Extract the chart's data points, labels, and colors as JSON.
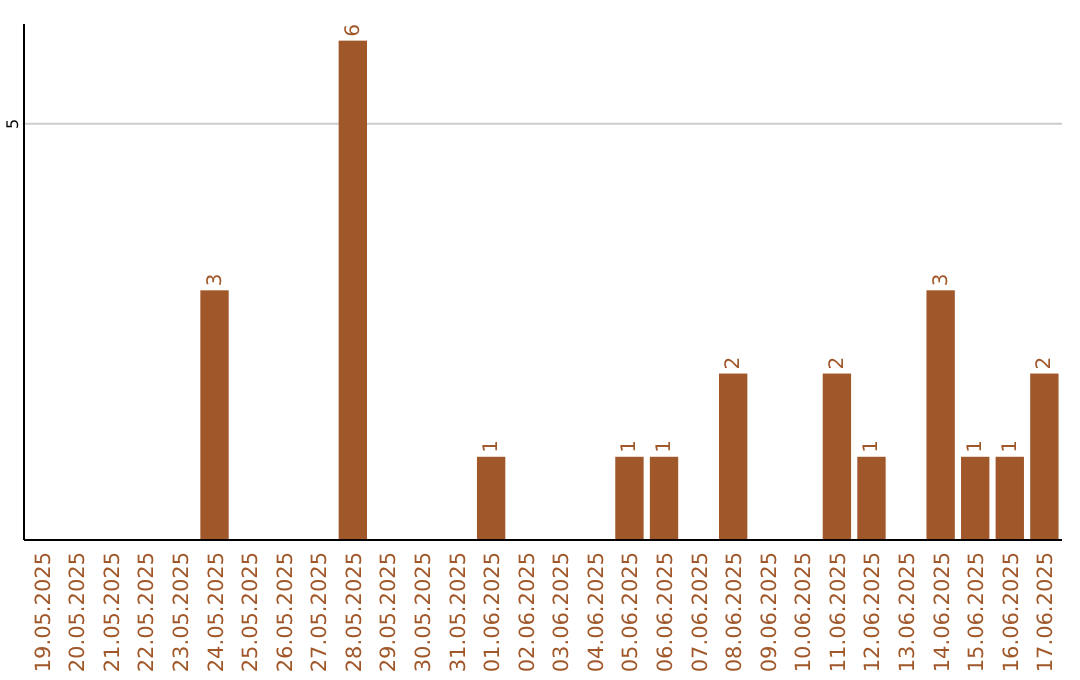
{
  "chart_data": {
    "type": "bar",
    "categories": [
      "19.05.2025",
      "20.05.2025",
      "21.05.2025",
      "22.05.2025",
      "23.05.2025",
      "24.05.2025",
      "25.05.2025",
      "26.05.2025",
      "27.05.2025",
      "28.05.2025",
      "29.05.2025",
      "30.05.2025",
      "31.05.2025",
      "01.06.2025",
      "02.06.2025",
      "03.06.2025",
      "04.06.2025",
      "05.06.2025",
      "06.06.2025",
      "07.06.2025",
      "08.06.2025",
      "09.06.2025",
      "10.06.2025",
      "11.06.2025",
      "12.06.2025",
      "13.06.2025",
      "14.06.2025",
      "15.06.2025",
      "16.06.2025",
      "17.06.2025"
    ],
    "values": [
      0,
      0,
      0,
      0,
      0,
      3,
      0,
      0,
      0,
      6,
      0,
      0,
      0,
      1,
      0,
      0,
      0,
      1,
      1,
      0,
      2,
      0,
      0,
      2,
      1,
      0,
      3,
      1,
      1,
      2
    ],
    "value_labels": [
      null,
      null,
      null,
      null,
      null,
      "3",
      null,
      null,
      null,
      "6",
      null,
      null,
      null,
      "1",
      null,
      null,
      null,
      "1",
      "1",
      null,
      "2",
      null,
      null,
      "2",
      "1",
      null,
      "3",
      "1",
      "1",
      "2"
    ],
    "color": "#a0582a",
    "ylim": [
      0,
      6.2
    ],
    "yticks": [
      5
    ],
    "grid": "y"
  }
}
